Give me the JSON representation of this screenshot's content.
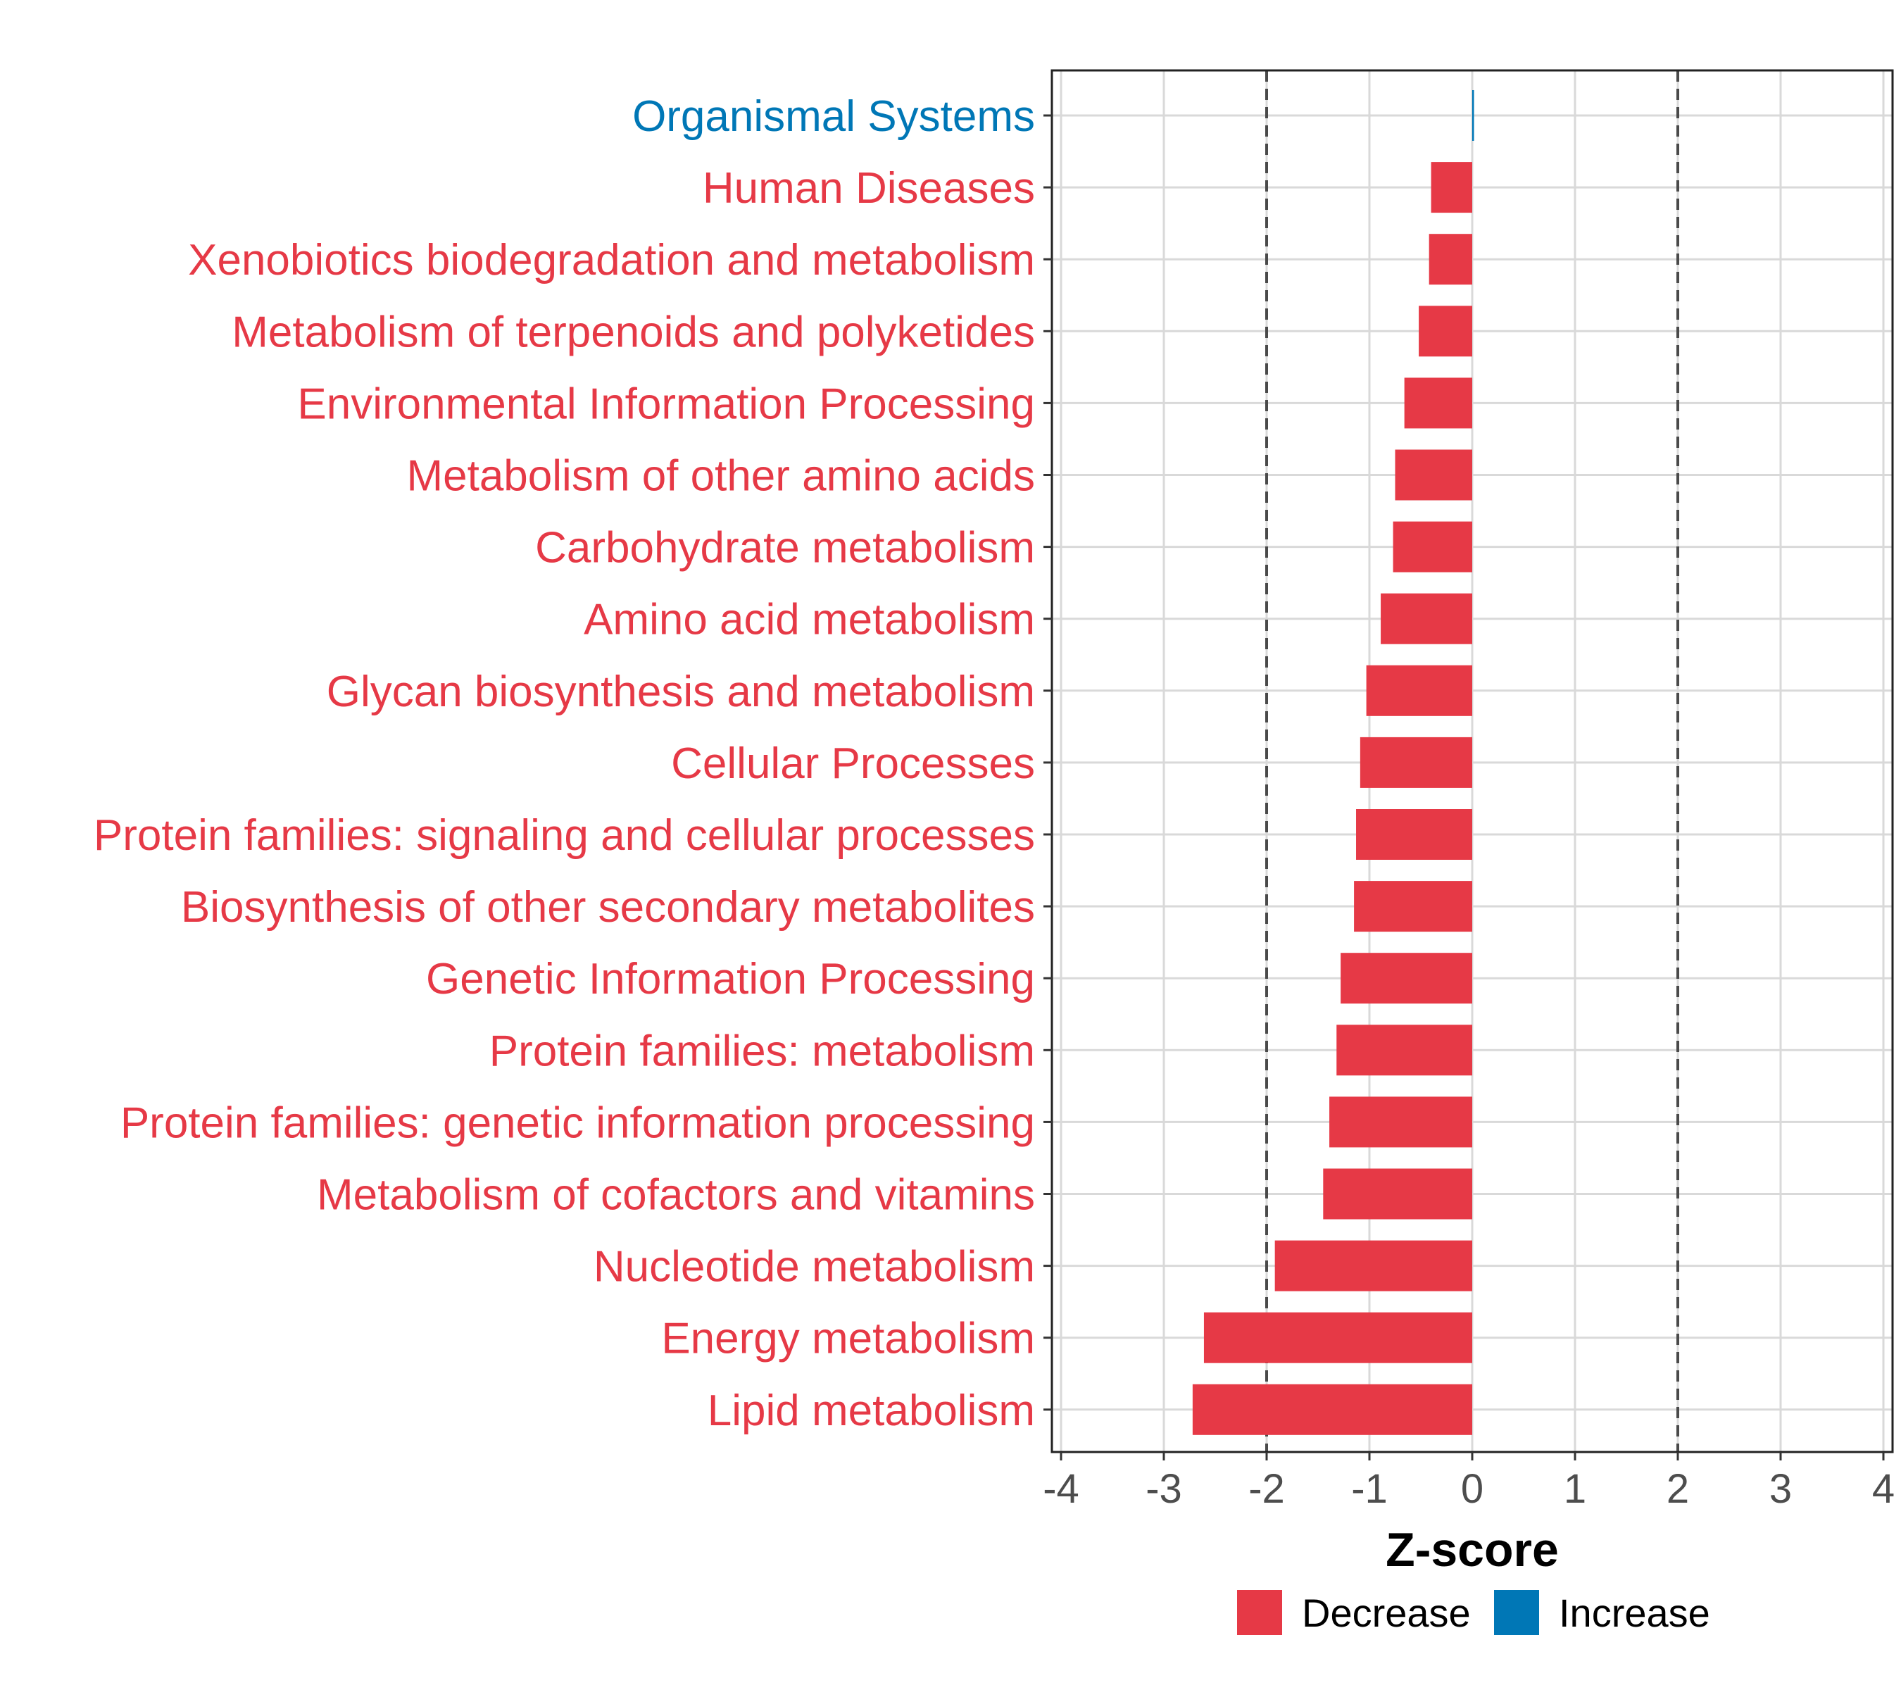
{
  "chart_data": {
    "type": "bar",
    "orientation": "horizontal",
    "title": "",
    "xlabel": "Z-score",
    "ylabel": "",
    "xlim": [
      -4,
      4
    ],
    "xticks": [
      -4,
      -3,
      -2,
      -1,
      0,
      1,
      2,
      3,
      4
    ],
    "xtick_labels": [
      "-4",
      "-3",
      "-2",
      "-1",
      "0",
      "1",
      "2",
      "3",
      "4"
    ],
    "reference_lines": [
      -2,
      2
    ],
    "grid": true,
    "legend_position": "bottom",
    "colors": {
      "Decrease": "#e63946",
      "Increase": "#0077b6"
    },
    "categories": [
      "Organismal Systems",
      "Human Diseases",
      "Xenobiotics biodegradation and metabolism",
      "Metabolism of terpenoids and polyketides",
      "Environmental Information Processing",
      "Metabolism of other amino acids",
      "Carbohydrate metabolism",
      "Amino acid metabolism",
      "Glycan biosynthesis and metabolism",
      "Cellular Processes",
      "Protein families: signaling and cellular processes",
      "Biosynthesis of other secondary metabolites",
      "Genetic Information Processing",
      "Protein families: metabolism",
      "Protein families: genetic information processing",
      "Metabolism of cofactors and vitamins",
      "Nucleotide metabolism",
      "Energy metabolism",
      "Lipid metabolism"
    ],
    "values": [
      0.01,
      -0.4,
      -0.42,
      -0.52,
      -0.66,
      -0.75,
      -0.77,
      -0.89,
      -1.03,
      -1.09,
      -1.13,
      -1.15,
      -1.28,
      -1.32,
      -1.39,
      -1.45,
      -1.92,
      -2.61,
      -2.72
    ],
    "direction": [
      "Increase",
      "Decrease",
      "Decrease",
      "Decrease",
      "Decrease",
      "Decrease",
      "Decrease",
      "Decrease",
      "Decrease",
      "Decrease",
      "Decrease",
      "Decrease",
      "Decrease",
      "Decrease",
      "Decrease",
      "Decrease",
      "Decrease",
      "Decrease",
      "Decrease"
    ],
    "legend": [
      "Decrease",
      "Increase"
    ]
  }
}
